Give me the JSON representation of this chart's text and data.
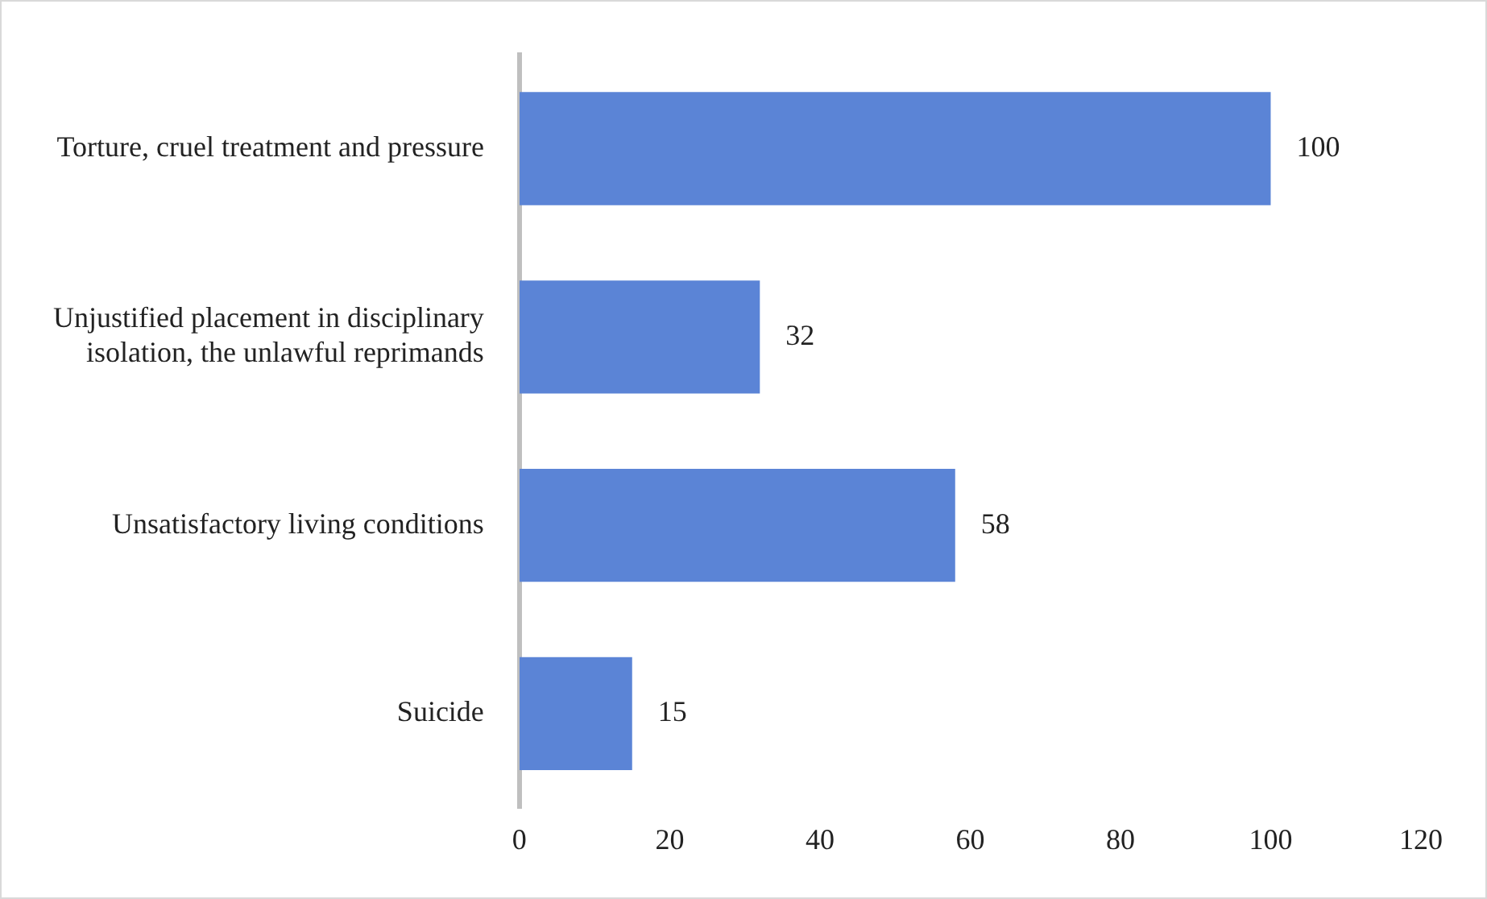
{
  "chart_data": {
    "type": "bar",
    "orientation": "horizontal",
    "categories": [
      "Torture, cruel treatment and pressure",
      "Unjustified placement in disciplinary isolation, the unlawful reprimands",
      "Unsatisfactory living conditions",
      "Suicide"
    ],
    "values": [
      100,
      32,
      58,
      15
    ],
    "color": "#5b84d6",
    "xlim": [
      0,
      120
    ],
    "xticks": [
      0,
      20,
      40,
      60,
      80,
      100,
      120
    ],
    "grid": false,
    "legend": false,
    "data_labels": true
  }
}
